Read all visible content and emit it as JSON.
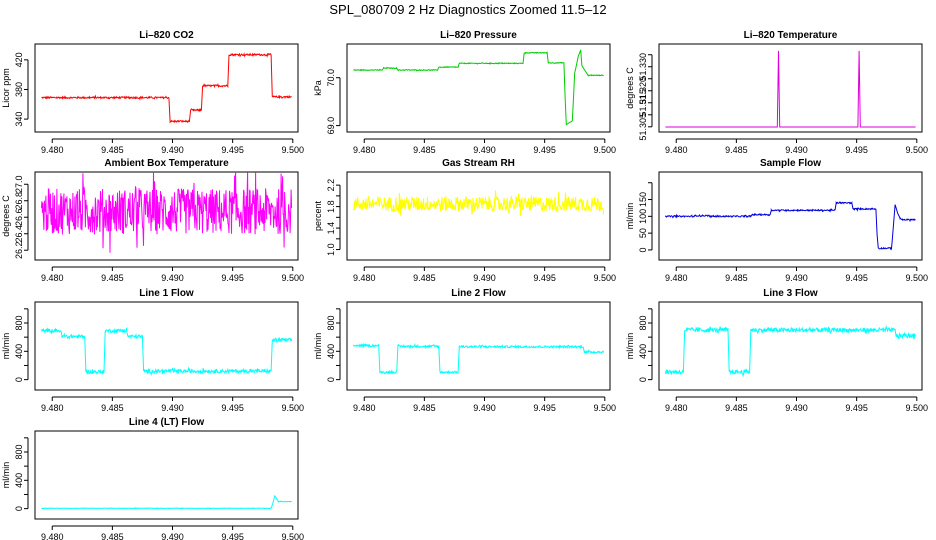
{
  "figure": {
    "title": "SPL_080709  2 Hz Diagnostics Zoomed 11.5–12"
  },
  "chart_data": [
    {
      "id": "co2",
      "type": "line",
      "title": "Li–820 CO2",
      "ylabel": "Licor ppm",
      "color": "#ff0000",
      "xlim": [
        9.4789,
        9.5001
      ],
      "ylim": [
        328,
        436
      ],
      "xticks": [
        9.48,
        9.485,
        9.49,
        9.495,
        9.5
      ],
      "xtick_labels": [
        "9.480",
        "9.485",
        "9.490",
        "9.495",
        "9.500"
      ],
      "yticks": [
        340,
        380,
        420
      ],
      "ytick_labels": [
        "340",
        "380",
        "420"
      ],
      "x": [
        9.4791,
        9.4897,
        9.4898,
        9.4914,
        9.4915,
        9.4924,
        9.4925,
        9.4946,
        9.4947,
        9.4982,
        9.4983,
        9.4999
      ],
      "y": [
        369,
        369,
        337,
        337,
        352,
        352,
        385,
        385,
        427,
        427,
        370,
        370
      ],
      "noise": 1.2
    },
    {
      "id": "pressure",
      "type": "line",
      "title": "Li–820 Pressure",
      "ylabel": "kPa",
      "color": "#00cc00",
      "xlim": [
        9.4789,
        9.5001
      ],
      "ylim": [
        68.95,
        70.62
      ],
      "xticks": [
        9.48,
        9.485,
        9.49,
        9.495,
        9.5
      ],
      "xtick_labels": [
        "9.480",
        "9.485",
        "9.490",
        "9.495",
        "9.500"
      ],
      "yticks": [
        69.0,
        70.0
      ],
      "ytick_labels": [
        "69.0",
        "70.0"
      ],
      "x": [
        9.4791,
        9.4815,
        9.4816,
        9.4827,
        9.4828,
        9.4861,
        9.4862,
        9.4878,
        9.4879,
        9.4932,
        9.4933,
        9.4952,
        9.4953,
        9.4966,
        9.4967,
        9.4968,
        9.4973,
        9.4975,
        9.4978,
        9.498,
        9.4981,
        9.4986,
        9.4999
      ],
      "y": [
        70.16,
        70.16,
        70.2,
        70.2,
        70.16,
        70.16,
        70.22,
        70.22,
        70.3,
        70.3,
        70.52,
        70.52,
        70.31,
        70.31,
        69.6,
        69.02,
        69.1,
        70.1,
        70.45,
        70.58,
        70.25,
        70.05,
        70.05
      ],
      "noise": 0.008
    },
    {
      "id": "licor_temp",
      "type": "line",
      "title": "Li–820 Temperature",
      "ylabel": "degrees C",
      "color": "#dd00dd",
      "xlim": [
        9.4789,
        9.5001
      ],
      "ylim": [
        51.3045,
        51.3378
      ],
      "xticks": [
        9.48,
        9.485,
        9.49,
        9.495,
        9.5
      ],
      "xtick_labels": [
        "9.480",
        "9.485",
        "9.490",
        "9.495",
        "9.500"
      ],
      "yticks": [
        51.305,
        51.31,
        51.315,
        51.32,
        51.325,
        51.33,
        51.335
      ],
      "ytick_labels": [
        "51.305",
        "",
        "51.315",
        "51.320",
        "",
        "51.330",
        ""
      ],
      "x": [
        9.4791,
        9.4884,
        9.4885,
        9.4886,
        9.4951,
        9.4952,
        9.4953,
        9.4999
      ],
      "y": [
        51.3049,
        51.3049,
        51.3366,
        51.3049,
        51.3049,
        51.3366,
        51.3049,
        51.3049
      ],
      "noise": 0
    },
    {
      "id": "ambient_temp",
      "type": "line",
      "title": "Ambient Box Temperature",
      "ylabel": "degrees C",
      "color": "#ff00ff",
      "xlim": [
        9.4789,
        9.5001
      ],
      "ylim": [
        26.13,
        27.1
      ],
      "xticks": [
        9.48,
        9.485,
        9.49,
        9.495,
        9.5
      ],
      "xtick_labels": [
        "9.480",
        "9.485",
        "9.490",
        "9.495",
        "9.500"
      ],
      "yticks": [
        26.2,
        26.4,
        26.6,
        26.8,
        27.0
      ],
      "ytick_labels": [
        "26.2",
        "26.4",
        "26.6",
        "26.8",
        "27.0"
      ],
      "x": [
        9.4791,
        9.4999
      ],
      "y": [
        26.67,
        26.67
      ],
      "noise": 0.28
    },
    {
      "id": "rh",
      "type": "line",
      "title": "Gas Stream RH",
      "ylabel": "percent",
      "color": "#ffff00",
      "xlim": [
        9.4789,
        9.5001
      ],
      "ylim": [
        0.88,
        2.37
      ],
      "xticks": [
        9.48,
        9.485,
        9.49,
        9.495,
        9.5
      ],
      "xtick_labels": [
        "9.480",
        "9.485",
        "9.490",
        "9.495",
        "9.500"
      ],
      "yticks": [
        1.0,
        1.2,
        1.4,
        1.6,
        1.8,
        2.0,
        2.2
      ],
      "ytick_labels": [
        "1.0",
        "",
        "1.4",
        "",
        "1.8",
        "",
        "2.2"
      ],
      "x": [
        9.4791,
        9.4999
      ],
      "y": [
        1.85,
        1.85
      ],
      "noise": 0.14
    },
    {
      "id": "sample_flow",
      "type": "line",
      "title": "Sample Flow",
      "ylabel": "ml/min",
      "color": "#0000dd",
      "xlim": [
        9.4789,
        9.5001
      ],
      "ylim": [
        -18,
        220
      ],
      "xticks": [
        9.48,
        9.485,
        9.49,
        9.495,
        9.5
      ],
      "xtick_labels": [
        "9.480",
        "9.485",
        "9.490",
        "9.495",
        "9.500"
      ],
      "yticks": [
        0,
        50,
        100,
        150,
        200
      ],
      "ytick_labels": [
        "0",
        "50",
        "100",
        "150",
        ""
      ],
      "x": [
        9.4791,
        9.4815,
        9.4816,
        9.4827,
        9.4828,
        9.4862,
        9.4863,
        9.4878,
        9.4879,
        9.4932,
        9.4933,
        9.4946,
        9.4947,
        9.4966,
        9.4967,
        9.4968,
        9.4979,
        9.4982,
        9.4984,
        9.4986,
        9.4988,
        9.4999
      ],
      "y": [
        100,
        100,
        102,
        102,
        100,
        100,
        105,
        105,
        118,
        118,
        140,
        140,
        122,
        122,
        45,
        5,
        5,
        135,
        110,
        95,
        90,
        90
      ],
      "noise": 2
    },
    {
      "id": "line1",
      "type": "line",
      "title": "Line 1 Flow",
      "ylabel": "ml/min",
      "color": "#00ffff",
      "xlim": [
        9.4789,
        9.5001
      ],
      "ylim": [
        -90,
        1040
      ],
      "xticks": [
        9.48,
        9.485,
        9.49,
        9.495,
        9.5
      ],
      "xtick_labels": [
        "9.480",
        "9.485",
        "9.490",
        "9.495",
        "9.500"
      ],
      "yticks": [
        0,
        200,
        400,
        600,
        800,
        1000
      ],
      "ytick_labels": [
        "0",
        "",
        "400",
        "",
        "800",
        ""
      ],
      "x": [
        9.4791,
        9.4807,
        9.4808,
        9.4827,
        9.4828,
        9.4843,
        9.4844,
        9.4862,
        9.4863,
        9.4875,
        9.4876,
        9.488,
        9.4881,
        9.4982,
        9.4983,
        9.4999
      ],
      "y": [
        690,
        690,
        610,
        610,
        110,
        110,
        690,
        690,
        610,
        610,
        120,
        120,
        120,
        120,
        560,
        560
      ],
      "noise": 25
    },
    {
      "id": "line2",
      "type": "line",
      "title": "Line 2 Flow",
      "ylabel": "ml/min",
      "color": "#00ffff",
      "xlim": [
        9.4789,
        9.5001
      ],
      "ylim": [
        -90,
        1040
      ],
      "xticks": [
        9.48,
        9.485,
        9.49,
        9.495,
        9.5
      ],
      "xtick_labels": [
        "9.480",
        "9.485",
        "9.490",
        "9.495",
        "9.500"
      ],
      "yticks": [
        0,
        200,
        400,
        600,
        800,
        1000
      ],
      "ytick_labels": [
        "0",
        "",
        "400",
        "",
        "800",
        ""
      ],
      "x": [
        9.4791,
        9.4812,
        9.4813,
        9.4827,
        9.4828,
        9.4862,
        9.4863,
        9.4878,
        9.4879,
        9.4982,
        9.4983,
        9.4999
      ],
      "y": [
        480,
        480,
        105,
        105,
        470,
        470,
        105,
        105,
        465,
        465,
        390,
        390
      ],
      "noise": 15
    },
    {
      "id": "line3",
      "type": "line",
      "title": "Line 3 Flow",
      "ylabel": "ml/min",
      "color": "#00ffff",
      "xlim": [
        9.4789,
        9.5001
      ],
      "ylim": [
        -90,
        1040
      ],
      "xticks": [
        9.48,
        9.485,
        9.49,
        9.495,
        9.5
      ],
      "xtick_labels": [
        "9.480",
        "9.485",
        "9.490",
        "9.495",
        "9.500"
      ],
      "yticks": [
        0,
        200,
        400,
        600,
        800,
        1000
      ],
      "ytick_labels": [
        "0",
        "",
        "400",
        "",
        "800",
        ""
      ],
      "x": [
        9.4791,
        9.4806,
        9.4807,
        9.4843,
        9.4844,
        9.4861,
        9.4862,
        9.4982,
        9.4983,
        9.4999
      ],
      "y": [
        110,
        110,
        700,
        700,
        110,
        110,
        700,
        700,
        620,
        620
      ],
      "noise": 30
    },
    {
      "id": "line4",
      "type": "line",
      "title": "Line 4 (LT) Flow",
      "ylabel": "ml/min",
      "color": "#00ffff",
      "xlim": [
        9.4789,
        9.5001
      ],
      "ylim": [
        -90,
        1040
      ],
      "xticks": [
        9.48,
        9.485,
        9.49,
        9.495,
        9.5
      ],
      "xtick_labels": [
        "9.480",
        "9.485",
        "9.490",
        "9.495",
        "9.500"
      ],
      "yticks": [
        0,
        200,
        400,
        600,
        800,
        1000
      ],
      "ytick_labels": [
        "0",
        "",
        "400",
        "",
        "800",
        ""
      ],
      "x": [
        9.4791,
        9.4982,
        9.4983,
        9.4985,
        9.4988,
        9.4999
      ],
      "y": [
        5,
        5,
        50,
        180,
        100,
        100
      ],
      "noise": 3
    }
  ]
}
